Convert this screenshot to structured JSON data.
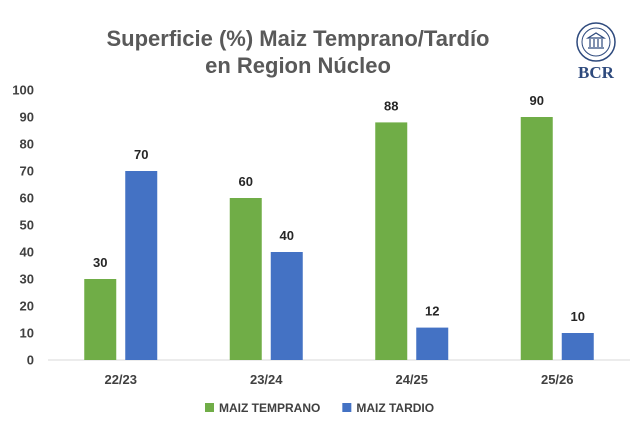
{
  "chart_data": {
    "type": "bar",
    "title_lines": [
      "Superficie (%) Maiz Temprano/Tardío",
      "en Region Núcleo"
    ],
    "categories": [
      "22/23",
      "23/24",
      "24/25",
      "25/26"
    ],
    "series": [
      {
        "name": "MAIZ TEMPRANO",
        "color": "#70ad47",
        "values": [
          30,
          60,
          88,
          90
        ]
      },
      {
        "name": "MAIZ TARDIO",
        "color": "#4472c4",
        "values": [
          70,
          40,
          12,
          10
        ]
      }
    ],
    "ylim": [
      0,
      100
    ],
    "yticks": [
      0,
      10,
      20,
      30,
      40,
      50,
      60,
      70,
      80,
      90,
      100
    ],
    "grid": false,
    "legend_position": "bottom"
  },
  "logo": {
    "text": "BCR",
    "icon": "bcr-seal-icon",
    "color": "#2e4a7d"
  }
}
